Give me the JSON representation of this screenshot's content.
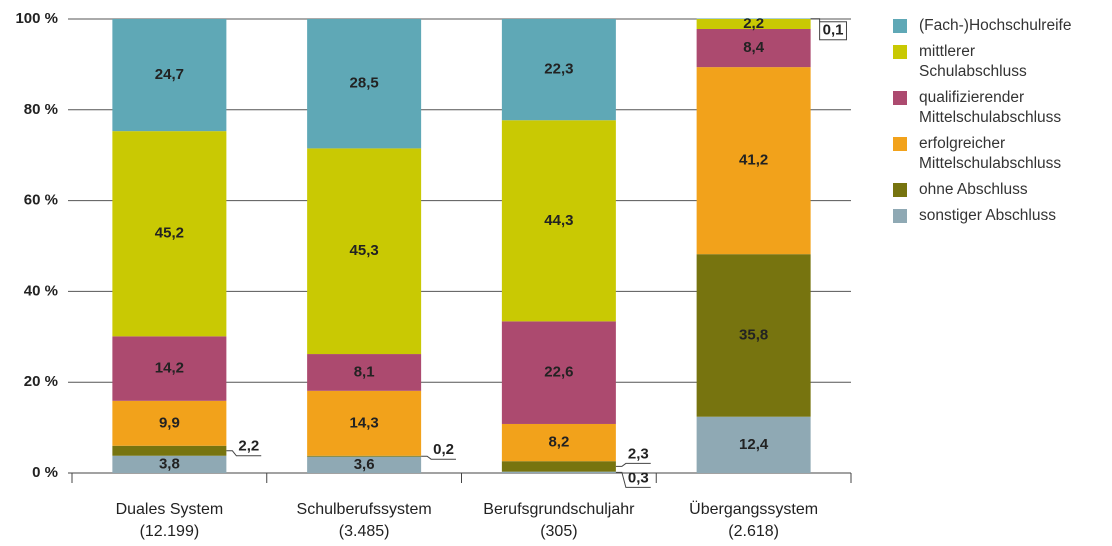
{
  "chart_data": {
    "type": "stacked-bar",
    "categories": [
      [
        "Duales System",
        "(12.199)"
      ],
      [
        "Schulberufssystem",
        "(3.485)"
      ],
      [
        "Berufsgrundschuljahr",
        "(305)"
      ],
      [
        "Übergangssystem",
        "(2.618)"
      ]
    ],
    "series": [
      {
        "name": "sonstiger Abschluss",
        "color": "#8fa9b4",
        "values": [
          3.8,
          3.6,
          0.3,
          12.4
        ],
        "value_labels": [
          "3,8",
          "3,6",
          "0,3",
          "12,4"
        ]
      },
      {
        "name": "ohne Abschluss",
        "color": "#77740f",
        "values": [
          2.2,
          0.2,
          2.3,
          35.8
        ],
        "value_labels": [
          "2,2",
          "0,2",
          "2,3",
          "35,8"
        ]
      },
      {
        "name": "erfolgreicher Mittelschulabschluss",
        "color": "#f2a21b",
        "values": [
          9.9,
          14.3,
          8.2,
          41.2
        ],
        "value_labels": [
          "9,9",
          "14,3",
          "8,2",
          "41,2"
        ]
      },
      {
        "name": "qualifizierender Mittelschulabschluss",
        "color": "#ac4a6f",
        "values": [
          14.2,
          8.1,
          22.6,
          8.4
        ],
        "value_labels": [
          "14,2",
          "8,1",
          "22,6",
          "8,4"
        ]
      },
      {
        "name": "mittlerer Schulabschluss",
        "color": "#c9c903",
        "values": [
          45.2,
          45.3,
          44.3,
          2.2
        ],
        "value_labels": [
          "45,2",
          "45,3",
          "44,3",
          "2,2"
        ]
      },
      {
        "name": "(Fach-)Hochschulreife",
        "color": "#5fa8b6",
        "values": [
          24.7,
          28.5,
          22.3,
          0.1
        ],
        "value_labels": [
          "24,7",
          "28,5",
          "22,3",
          "0,1"
        ]
      }
    ],
    "ylim": [
      0,
      100
    ],
    "yticks": [
      {
        "value": 0,
        "label": "0 %"
      },
      {
        "value": 20,
        "label": "20 %"
      },
      {
        "value": 40,
        "label": "40 %"
      },
      {
        "value": 60,
        "label": "60 %"
      },
      {
        "value": 80,
        "label": "80 %"
      },
      {
        "value": 100,
        "label": "100 %"
      }
    ],
    "grid": true
  }
}
